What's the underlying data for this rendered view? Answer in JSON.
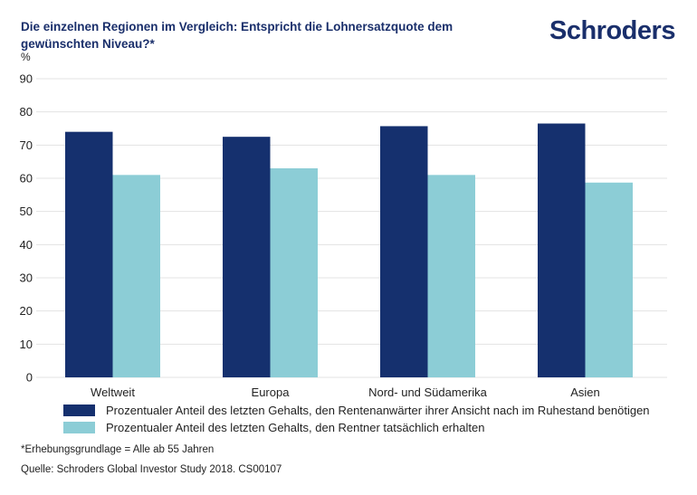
{
  "header": {
    "title": "Die einzelnen Regionen im Vergleich: Entspricht die Lohnersatzquote dem gewünschten Niveau?*",
    "logo": "Schroders"
  },
  "colors": {
    "series1": "#15306e",
    "series2": "#8ccdd6",
    "grid": "#e3e3e3",
    "title": "#1a2f6b"
  },
  "chart_data": {
    "type": "bar",
    "title": "Die einzelnen Regionen im Vergleich: Entspricht die Lohnersatzquote dem gewünschten Niveau?*",
    "ylabel": "%",
    "xlabel": "",
    "ylim": [
      0,
      90
    ],
    "yticks": [
      0,
      10,
      20,
      30,
      40,
      50,
      60,
      70,
      80,
      90
    ],
    "grid": true,
    "legend_position": "bottom",
    "categories": [
      "Weltweit",
      "Europa",
      "Nord- und Südamerika",
      "Asien"
    ],
    "series": [
      {
        "name": "Prozentualer Anteil des letzten Gehalts, den Rentenanwärter ihrer Ansicht nach im Ruhestand benötigen",
        "values": [
          74,
          72.5,
          75.7,
          76.5
        ]
      },
      {
        "name": "Prozentualer Anteil des letzten Gehalts, den Rentner tatsächlich erhalten",
        "values": [
          61,
          63,
          61,
          58.7
        ]
      }
    ]
  },
  "footnotes": {
    "base": "*Erhebungsgrundlage = Alle ab 55 Jahren",
    "source": "Quelle: Schroders Global Investor Study 2018. CS00107"
  }
}
